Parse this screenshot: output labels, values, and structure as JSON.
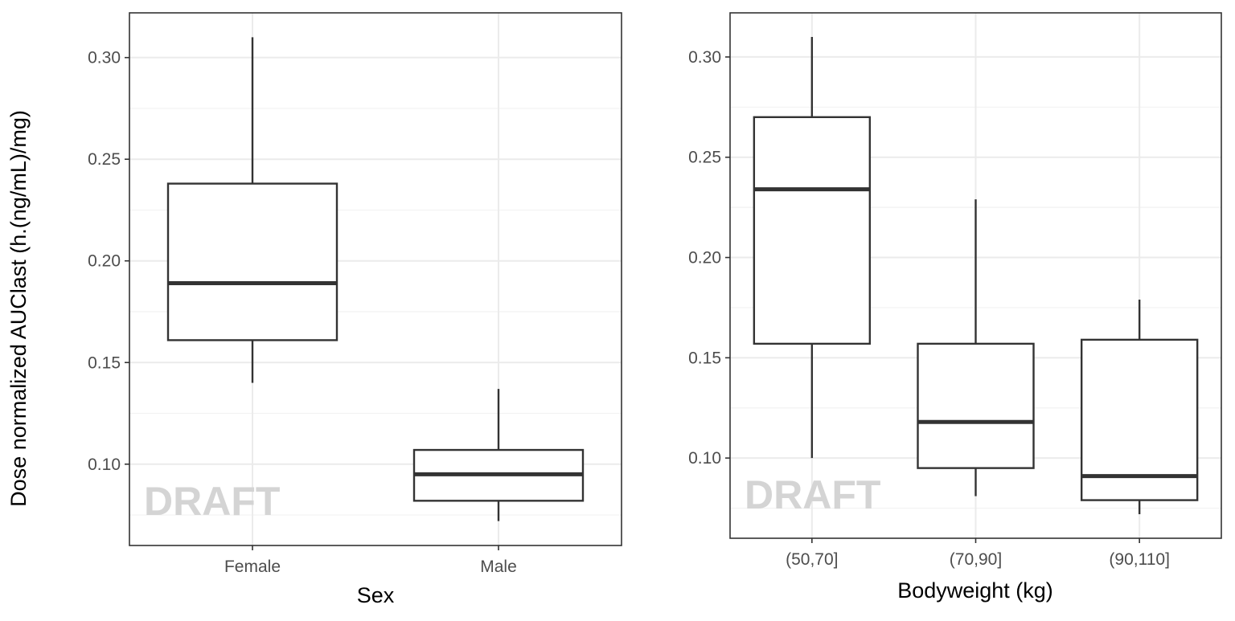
{
  "shared_ylabel": "Dose normalized AUClast (h.(ng/mL)/mg)",
  "watermark": "DRAFT",
  "chart_data": [
    {
      "type": "box",
      "xlabel": "Sex",
      "categories": [
        "Female",
        "Male"
      ],
      "ylim": [
        0.06,
        0.322
      ],
      "yticks": [
        0.1,
        0.15,
        0.2,
        0.25,
        0.3
      ],
      "ytick_labels": [
        "0.10",
        "0.15",
        "0.20",
        "0.25",
        "0.30"
      ],
      "grid": true,
      "boxes": [
        {
          "category": "Female",
          "whisker_low": 0.14,
          "q1": 0.161,
          "median": 0.189,
          "q3": 0.238,
          "whisker_high": 0.31
        },
        {
          "category": "Male",
          "whisker_low": 0.072,
          "q1": 0.082,
          "median": 0.095,
          "q3": 0.107,
          "whisker_high": 0.137
        }
      ]
    },
    {
      "type": "box",
      "xlabel": "Bodyweight (kg)",
      "categories": [
        "(50,70]",
        "(70,90]",
        "(90,110]"
      ],
      "ylim": [
        0.06,
        0.322
      ],
      "yticks": [
        0.1,
        0.15,
        0.2,
        0.25,
        0.3
      ],
      "ytick_labels": [
        "0.10",
        "0.15",
        "0.20",
        "0.25",
        "0.30"
      ],
      "grid": true,
      "boxes": [
        {
          "category": "(50,70]",
          "whisker_low": 0.1,
          "q1": 0.157,
          "median": 0.234,
          "q3": 0.27,
          "whisker_high": 0.31
        },
        {
          "category": "(70,90]",
          "whisker_low": 0.081,
          "q1": 0.095,
          "median": 0.118,
          "q3": 0.157,
          "whisker_high": 0.229
        },
        {
          "category": "(90,110]",
          "whisker_low": 0.072,
          "q1": 0.079,
          "median": 0.091,
          "q3": 0.159,
          "whisker_high": 0.179
        }
      ]
    }
  ]
}
